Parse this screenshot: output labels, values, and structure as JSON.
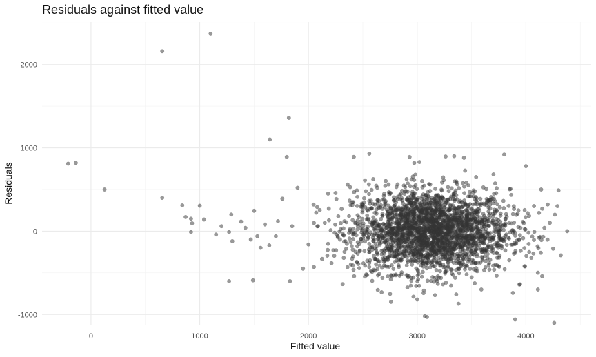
{
  "chart_data": {
    "type": "scatter",
    "title": "Residuals against fitted value",
    "xlabel": "Fitted value",
    "ylabel": "Residuals",
    "xlim": [
      -450,
      4600
    ],
    "ylim": [
      -1130,
      2510
    ],
    "x_ticks": [
      0,
      1000,
      2000,
      3000,
      4000
    ],
    "x_tick_labels": [
      "0",
      "1000",
      "2000",
      "3000",
      "4000"
    ],
    "y_ticks": [
      -1000,
      0,
      1000,
      2000
    ],
    "y_tick_labels": [
      "-1000",
      "0",
      "1000",
      "2000"
    ],
    "grid": true,
    "point_color": "#333333",
    "point_opacity": 0.5,
    "series": [
      {
        "points": [
          [
            -210,
            810
          ],
          [
            -140,
            820
          ],
          [
            125,
            500
          ],
          [
            655,
            2160
          ],
          [
            1100,
            2370
          ],
          [
            655,
            400
          ],
          [
            1645,
            1100
          ],
          [
            1820,
            1360
          ],
          [
            1800,
            890
          ],
          [
            1900,
            520
          ],
          [
            1760,
            390
          ],
          [
            840,
            310
          ],
          [
            1000,
            305
          ],
          [
            870,
            170
          ],
          [
            920,
            150
          ],
          [
            930,
            95
          ],
          [
            920,
            -10
          ],
          [
            1040,
            140
          ],
          [
            1150,
            -40
          ],
          [
            1200,
            60
          ],
          [
            1290,
            200
          ],
          [
            1270,
            -10
          ],
          [
            1300,
            -120
          ],
          [
            1380,
            115
          ],
          [
            1420,
            40
          ],
          [
            1470,
            -100
          ],
          [
            1500,
            245
          ],
          [
            1530,
            -60
          ],
          [
            1560,
            -200
          ],
          [
            1600,
            80
          ],
          [
            1640,
            -170
          ],
          [
            1700,
            -60
          ],
          [
            1720,
            120
          ],
          [
            1270,
            -600
          ],
          [
            1490,
            -590
          ],
          [
            1830,
            -600
          ],
          [
            1850,
            60
          ],
          [
            1950,
            -450
          ],
          [
            2000,
            -160
          ],
          [
            2050,
            -430
          ],
          [
            2560,
            930
          ],
          [
            2930,
            890
          ],
          [
            3020,
            830
          ],
          [
            3340,
            900
          ],
          [
            3430,
            880
          ],
          [
            3800,
            920
          ],
          [
            4000,
            780
          ],
          [
            3380,
            -870
          ],
          [
            3070,
            -1020
          ],
          [
            3000,
            -820
          ],
          [
            3090,
            -1030
          ],
          [
            3590,
            -700
          ],
          [
            3880,
            -740
          ],
          [
            3900,
            -1060
          ],
          [
            4110,
            -700
          ],
          [
            4260,
            -1100
          ],
          [
            4380,
            0
          ],
          [
            4300,
            490
          ],
          [
            4250,
            -210
          ],
          [
            4320,
            -290
          ],
          [
            4200,
            320
          ],
          [
            4150,
            270
          ],
          [
            4050,
            -320
          ],
          [
            4170,
            40
          ],
          [
            4120,
            220
          ],
          [
            3950,
            40
          ],
          [
            4030,
            -250
          ],
          [
            4290,
            300
          ],
          [
            2290,
            -100
          ],
          [
            2420,
            -540
          ],
          [
            2360,
            560
          ],
          [
            2450,
            410
          ],
          [
            2560,
            -380
          ],
          [
            2610,
            220
          ],
          [
            2520,
            610
          ],
          [
            2470,
            -240
          ],
          [
            2680,
            -560
          ],
          [
            2710,
            360
          ],
          [
            2150,
            100
          ],
          [
            2230,
            -230
          ],
          [
            2080,
            290
          ],
          [
            2330,
            120
          ],
          [
            2180,
            450
          ],
          [
            2390,
            -400
          ],
          [
            4140,
            500
          ],
          [
            4220,
            100
          ],
          [
            3120,
            560
          ],
          [
            3210,
            -480
          ],
          [
            2820,
            410
          ],
          [
            2910,
            -350
          ],
          [
            3470,
            300
          ],
          [
            3530,
            -250
          ],
          [
            2990,
            120
          ],
          [
            3260,
            80
          ],
          [
            3050,
            -120
          ],
          [
            3160,
            230
          ],
          [
            2870,
            -40
          ],
          [
            3380,
            -60
          ],
          [
            3110,
            20
          ],
          [
            3190,
            -30
          ],
          [
            2950,
            50
          ],
          [
            3290,
            150
          ],
          [
            3070,
            -200
          ],
          [
            3210,
            300
          ],
          [
            2790,
            40
          ],
          [
            3450,
            10
          ],
          [
            3620,
            -100
          ],
          [
            3700,
            180
          ],
          [
            2650,
            60
          ],
          [
            3820,
            -40
          ],
          [
            3010,
            400
          ],
          [
            3150,
            -420
          ],
          [
            3300,
            -300
          ],
          [
            2890,
            260
          ],
          [
            3360,
            430
          ],
          [
            2740,
            -150
          ]
        ]
      }
    ]
  }
}
